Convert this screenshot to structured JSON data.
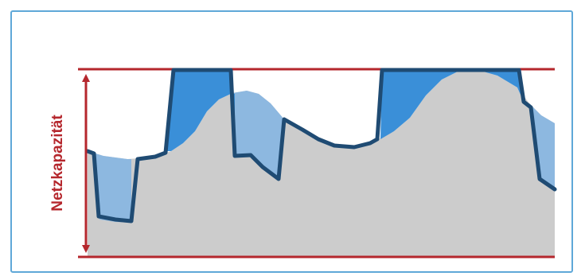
{
  "axis": {
    "label": "Netzkapazität"
  },
  "colors": {
    "frame": "#5fa8d8",
    "capacity_line": "#b5272d",
    "demand_area": "#cccccc",
    "flexibility_area": "#8db8e0",
    "overflow_area": "#3a8fd8",
    "load_line": "#1f4b73"
  }
}
